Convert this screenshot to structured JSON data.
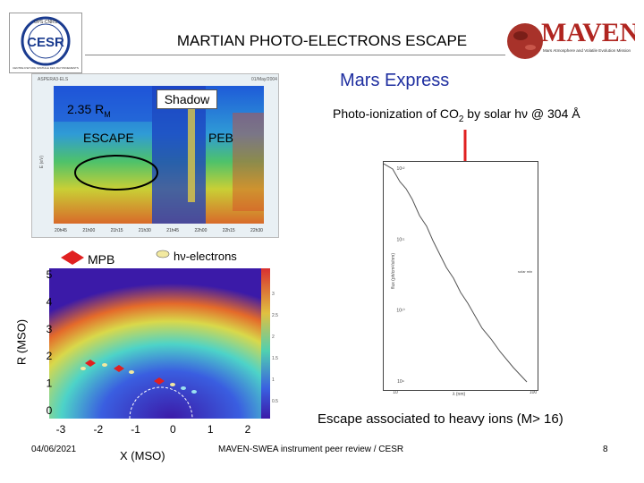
{
  "header": {
    "title": "MARTIAN PHOTO-ELECTRONS ESCAPE",
    "subtitle": "Mars Express"
  },
  "logos": {
    "cesr": {
      "text": "CESR",
      "ring_top": "UPS·CNRS",
      "ring_bottom": "CENTRE D'ETUDE SPATIALE DES RAYONNEMENTS"
    },
    "maven": {
      "text": "MAVEN",
      "tagline": "Mars Atmosphere and Volatile Evolution Mission"
    }
  },
  "spectrogram": {
    "header_left": "ASPERA3-ELS",
    "header_right": "01/May/2004",
    "ylabel": "E (eV)",
    "y_ticks": [
      "1000",
      "100",
      "10",
      "1"
    ],
    "x_ticks": [
      "20h45",
      "21h00",
      "21h15",
      "21h30",
      "21h45",
      "22h00",
      "22h15",
      "22h30"
    ],
    "labels": {
      "distance": "2.35 R",
      "distance_sub": "M",
      "shadow": "Shadow",
      "escape": "ESCAPE",
      "peb": "PEB"
    }
  },
  "orbit_plot": {
    "mpb_label": "MPB",
    "photo_label": "hν-electrons",
    "ylabel": "R (MSO)",
    "xlabel": "X (MSO)",
    "y_ticks": [
      "5",
      "4",
      "3",
      "2",
      "1",
      "0"
    ],
    "x_ticks": [
      "-3",
      "-2",
      "-1",
      "0",
      "1",
      "2"
    ],
    "colorbar_ticks": [
      "3",
      "2.5",
      "2",
      "1.5",
      "1",
      "0.5"
    ]
  },
  "solar_flux": {
    "title_prefix": "Photo-ionization of CO",
    "title_sub": "2",
    "title_suffix": " by solar hν @ 304 Å",
    "ylabel": "flux (ph/cm²/s/nm)",
    "xlabel": "λ (nm)",
    "legend": "solar min",
    "y_ticks": [
      "10¹²",
      "10¹¹",
      "10¹⁰",
      "10⁹"
    ],
    "x_ticks": [
      "10",
      "100"
    ]
  },
  "text": {
    "escape_heavy": "Escape associated to heavy ions  (M> 16)",
    "date": "04/06/2021",
    "review": "MAVEN-SWEA instrument peer review / CESR",
    "page": "8"
  },
  "colors": {
    "title_blue": "#1f2fa0",
    "arrow_red": "#e02020",
    "oval_green": "#2a8a2a",
    "orbit_bg": "#3b1aa8"
  }
}
